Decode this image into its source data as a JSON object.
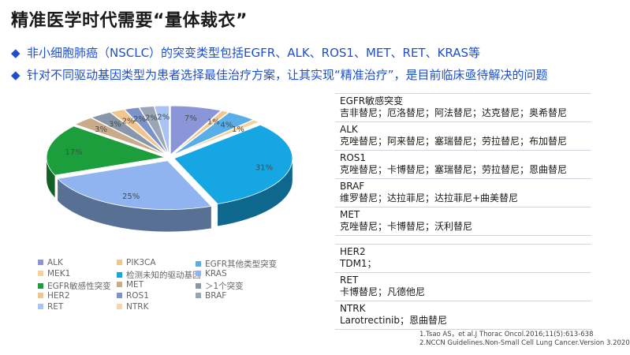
{
  "header": {
    "title": "精准医学时代需要“量体裁衣”",
    "bullets": [
      "非小细胞肺癌（NSCLC）的突变类型包括EGFR、ALK、ROS1、MET、RET、KRAS等",
      "针对不同驱动基因类型为患者选择最佳治疗方案，让其实现“精准治疗”，是目前临床亟待解决的问题"
    ],
    "bullet_color": "#1f4fc8"
  },
  "chart_data": {
    "type": "pie",
    "style": "3d-exploded",
    "slices": [
      {
        "label": "ALK",
        "value": 7,
        "display": "7%",
        "color": "#8a96d8"
      },
      {
        "label": "PIK3CA",
        "value": 1,
        "display": "1%",
        "color": "#f2c58c"
      },
      {
        "label": "EGFR其他类型突变",
        "value": 4,
        "display": "4%",
        "color": "#5aaee8"
      },
      {
        "label": "MEK1",
        "value": 1,
        "display": "1%",
        "color": "#f6d19a"
      },
      {
        "label": "检测未知的驱动基因",
        "value": 31,
        "display": "31%",
        "color": "#16a6e4"
      },
      {
        "label": "KRAS",
        "value": 25,
        "display": "25%",
        "color": "#8fb4f0"
      },
      {
        "label": "EGFR敏感性突变",
        "value": 17,
        "display": "17%",
        "color": "#1d9e3c"
      },
      {
        "label": "MET",
        "value": 3,
        "display": "3%",
        "color": "#c9ab8a"
      },
      {
        "label": "＞1个突变",
        "value": 3,
        "display": "3%",
        "color": "#8796a8"
      },
      {
        "label": "HER2",
        "value": 2,
        "display": "2%",
        "color": "#f2c58c"
      },
      {
        "label": "ROS1",
        "value": 2,
        "display": "2%",
        "color": "#7a93c8"
      },
      {
        "label": "BRAF",
        "value": 2,
        "display": "2%",
        "color": "#9aa6b8"
      },
      {
        "label": "RET",
        "value": 2,
        "display": "2%",
        "color": "#a8c4f4"
      },
      {
        "label": "NTRK",
        "value": 0,
        "display": "0%",
        "color": "#f6d6a8"
      }
    ],
    "legend_placement": "bottom"
  },
  "legend": [
    [
      "ALK",
      "PIK3CA",
      "EGFR其他类型突变"
    ],
    [
      "MEK1",
      "检测未知的驱动基因",
      "KRAS"
    ],
    [
      "EGFR敏感性突变",
      "MET",
      "＞1个突变"
    ],
    [
      "HER2",
      "ROS1",
      "BRAF"
    ],
    [
      "RET",
      "NTRK"
    ]
  ],
  "legend_colors": {
    "ALK": "#8a96d8",
    "PIK3CA": "#f2c58c",
    "EGFR其他类型突变": "#5aaee8",
    "MEK1": "#f6d19a",
    "检测未知的驱动基因": "#16a6e4",
    "KRAS": "#8fb4f0",
    "EGFR敏感性突变": "#1d9e3c",
    "MET": "#c9ab8a",
    "＞1个突变": "#8796a8",
    "HER2": "#f2c58c",
    "ROS1": "#7a93c8",
    "BRAF": "#9aa6b8",
    "RET": "#a8c4f4",
    "NTRK": "#f6d6a8"
  },
  "targets": {
    "group1": [
      {
        "name": "EGFR敏感突变",
        "drugs": "吉非替尼；厄洛替尼；阿法替尼；达克替尼；奥希替尼"
      },
      {
        "name": "ALK",
        "drugs": "克唑替尼；阿来替尼；塞瑞替尼；劳拉替尼；布加替尼"
      },
      {
        "name": "ROS1",
        "drugs": "克唑替尼；卡博替尼；塞瑞替尼；劳拉替尼；恩曲替尼"
      },
      {
        "name": "BRAF",
        "drugs": "维罗替尼；达拉菲尼；达拉菲尼+曲美替尼"
      },
      {
        "name": "MET",
        "drugs": "克唑替尼；卡博替尼；沃利替尼"
      }
    ],
    "group2": [
      {
        "name": "HER2",
        "drugs": "TDM1；"
      },
      {
        "name": "RET",
        "drugs": "卡博替尼；凡德他尼"
      },
      {
        "name": "NTRK",
        "drugs": "Larotrectinib；恩曲替尼"
      }
    ]
  },
  "references": [
    "1.Tsao AS，et al.J Thorac Oncol.2016;11(5):613-638",
    "2.NCCN Guidelines.Non-Small Cell Lung Cancer.Version 3.2020"
  ]
}
